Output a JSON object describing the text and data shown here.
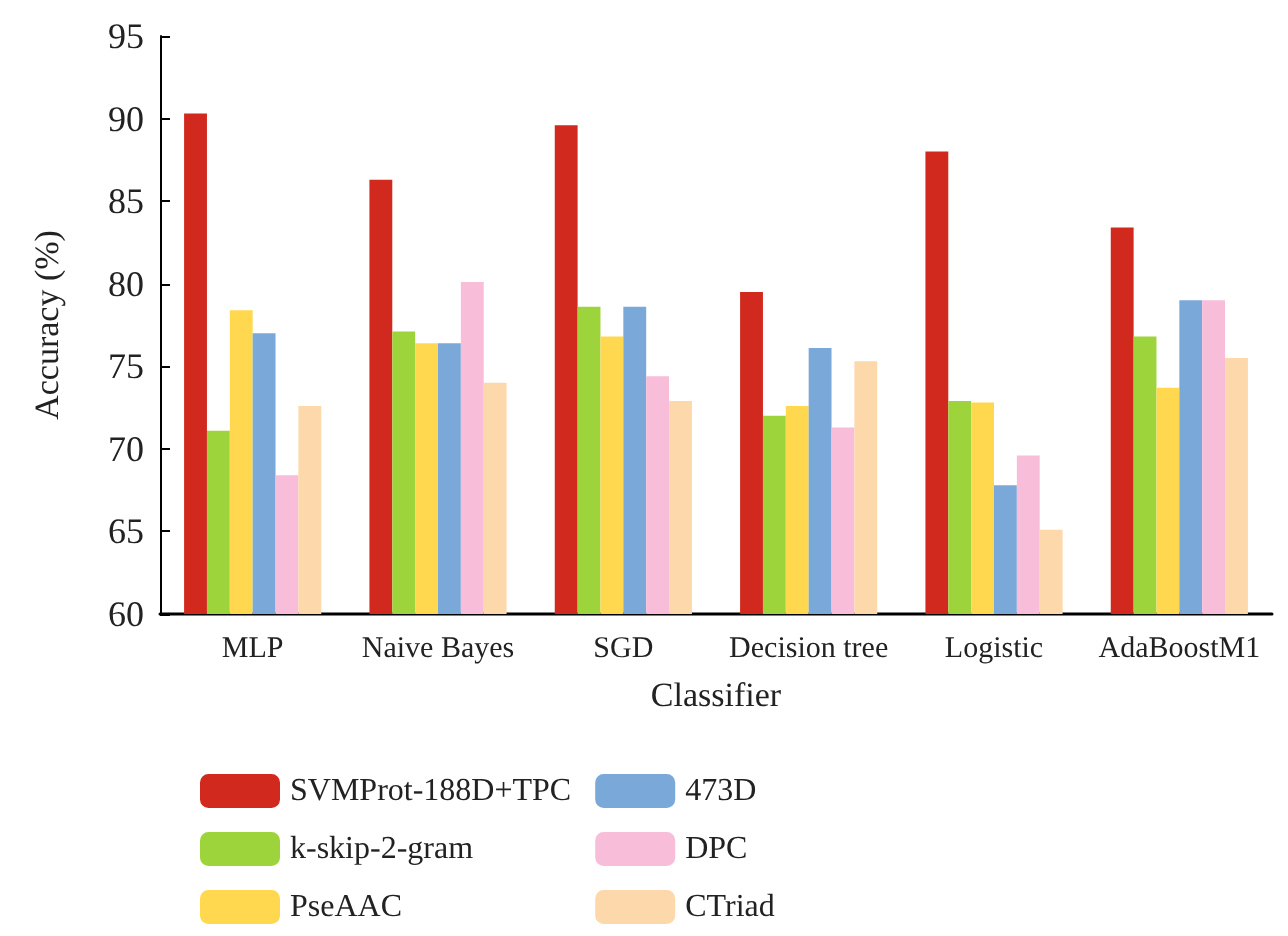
{
  "chart_data": {
    "type": "bar",
    "xlabel": "Classifier",
    "ylabel": "Accuracy (%)",
    "categories": [
      "MLP",
      "Naive Bayes",
      "SGD",
      "Decision tree",
      "Logistic",
      "AdaBoostM1"
    ],
    "series": [
      {
        "name": "SVMProt-188D+TPC",
        "color": "#d1291d",
        "values": [
          90.3,
          86.3,
          89.6,
          79.5,
          88.0,
          83.4
        ]
      },
      {
        "name": "k-skip-2-gram",
        "color": "#9ed43b",
        "values": [
          71.1,
          77.1,
          78.6,
          72.0,
          72.9,
          76.8
        ]
      },
      {
        "name": "PseAAC",
        "color": "#ffd84f",
        "values": [
          78.4,
          76.4,
          76.8,
          72.6,
          72.8,
          73.7
        ]
      },
      {
        "name": "473D",
        "color": "#7aa9d9",
        "values": [
          77.0,
          76.4,
          78.6,
          76.1,
          67.8,
          79.0
        ]
      },
      {
        "name": "DPC",
        "color": "#f7bdd9",
        "values": [
          68.4,
          80.1,
          74.4,
          71.3,
          69.6,
          79.0
        ]
      },
      {
        "name": "CTriad",
        "color": "#fdd8aa",
        "values": [
          72.6,
          74.0,
          72.9,
          75.3,
          65.1,
          75.5
        ]
      }
    ],
    "ylim": [
      60,
      95
    ],
    "yticks": [
      60,
      65,
      70,
      75,
      80,
      85,
      90,
      95
    ],
    "grid": false,
    "legend": "bottom"
  }
}
